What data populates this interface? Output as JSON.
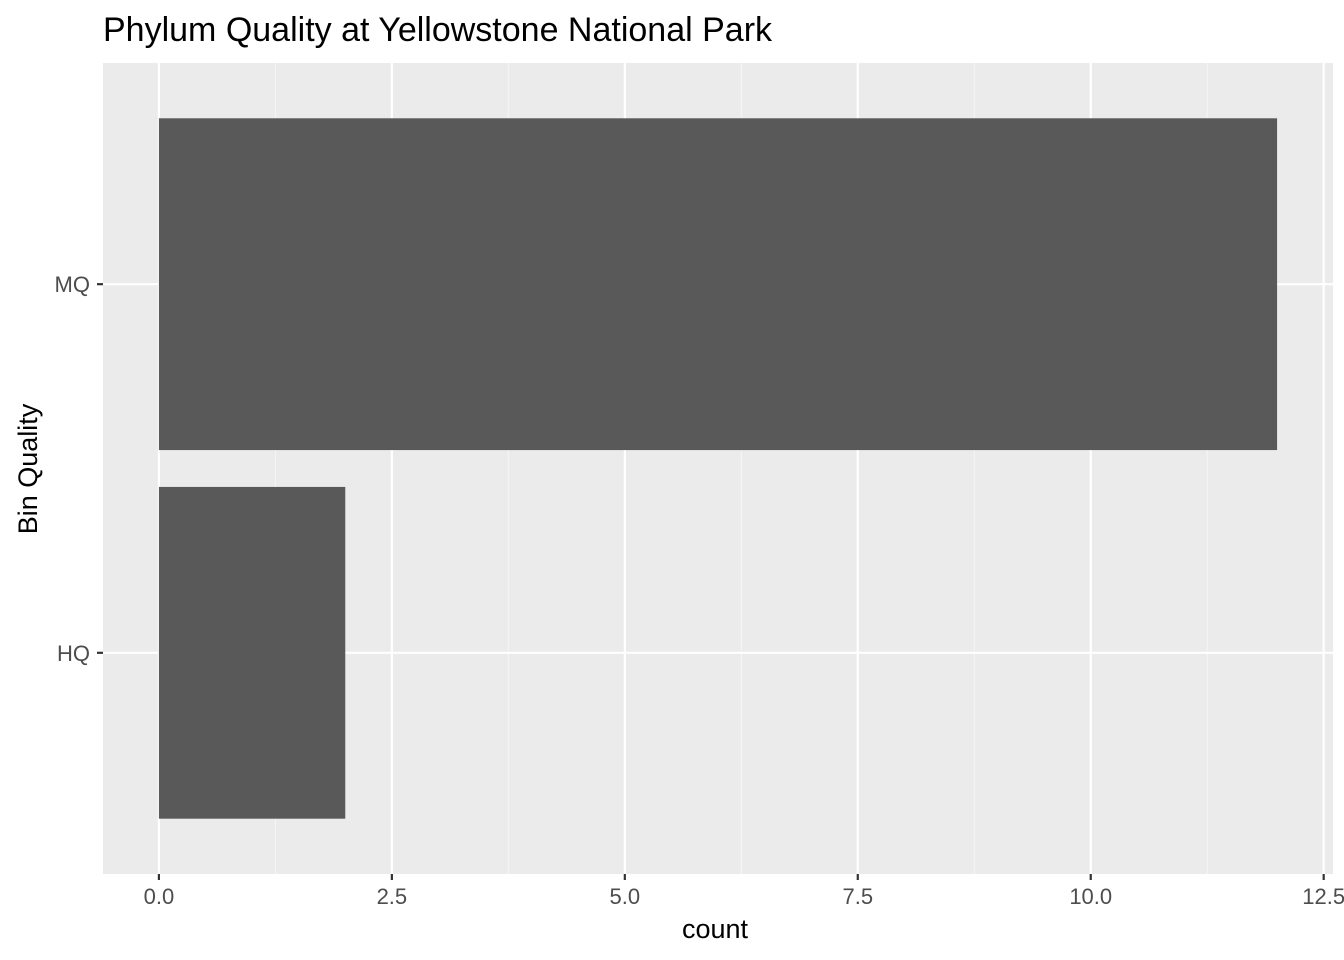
{
  "chart_data": {
    "type": "bar",
    "orientation": "horizontal",
    "title": "Phylum Quality at Yellowstone National Park",
    "xlabel": "count",
    "ylabel": "Bin Quality",
    "categories": [
      "HQ",
      "MQ"
    ],
    "values": [
      2,
      12
    ],
    "xlim": [
      -0.6,
      12.6
    ],
    "x_ticks": [
      0,
      2.5,
      5,
      7.5,
      10,
      12.5
    ],
    "x_tick_labels": [
      "0.0",
      "2.5",
      "5.0",
      "7.5",
      "10.0",
      "12.5"
    ],
    "grid": true,
    "legend": "none",
    "colors": {
      "bar": "#595959",
      "panel_background": "#ebebeb",
      "grid_major": "#ffffff",
      "grid_minor": "#f5f5f5",
      "tick_text": "#4d4d4d",
      "tick_mark": "#333333"
    }
  }
}
